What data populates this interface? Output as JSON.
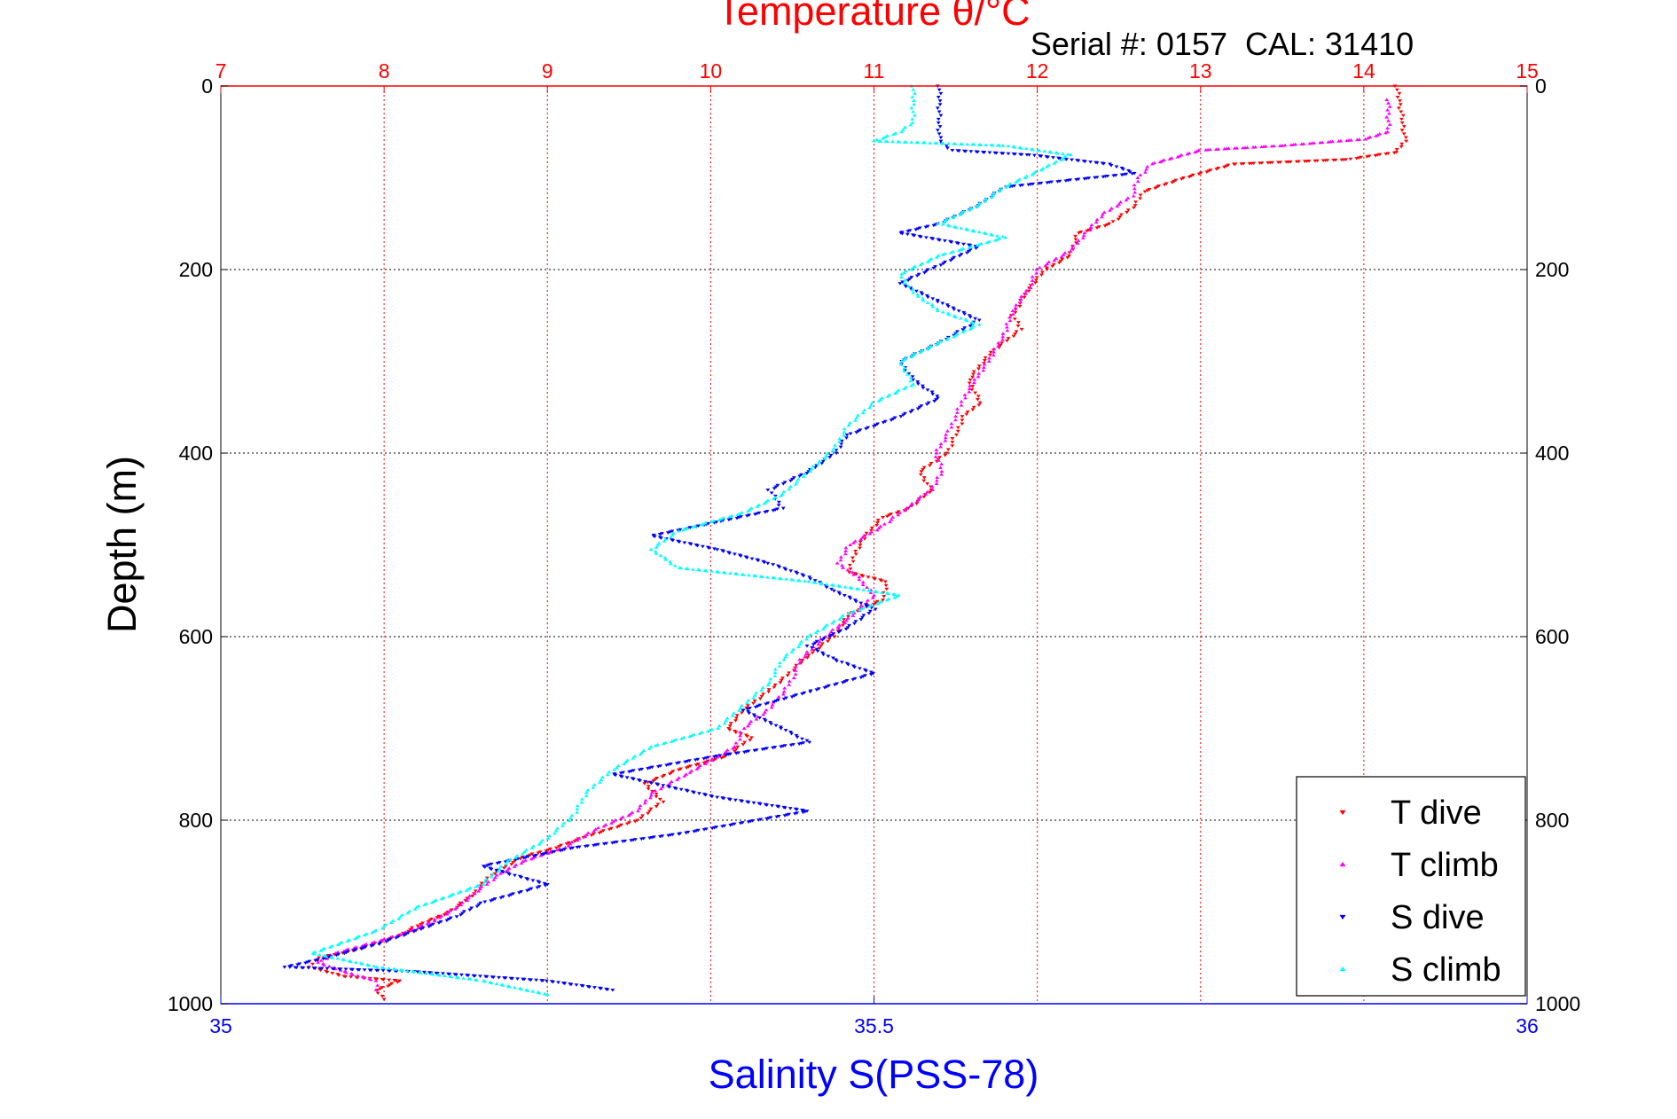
{
  "chart_data": {
    "type": "scatter",
    "title": "Temperature θ/°C",
    "subtitle": "Serial #: 0157  CAL: 31410",
    "top_axis": {
      "label": "Temperature θ/°C",
      "range": [
        7,
        15
      ],
      "ticks": [
        "7",
        "8",
        "9",
        "10",
        "11",
        "12",
        "13",
        "14",
        "15"
      ],
      "color": "#ff0000",
      "grid": true
    },
    "bottom_axis": {
      "label": "Salinity S(PSS-78)",
      "range": [
        35,
        36
      ],
      "ticks": [
        "35",
        "35.5",
        "36"
      ],
      "color": "#0000ff"
    },
    "y_axis": {
      "label": "Depth (m)",
      "range": [
        0,
        1000
      ],
      "reversed": true,
      "ticks": [
        "0",
        "200",
        "400",
        "600",
        "800",
        "1000"
      ],
      "grid": true
    },
    "legend": {
      "position": "bottom-right",
      "entries": [
        "T dive",
        "T climb",
        "S dive",
        "S climb"
      ]
    },
    "series": [
      {
        "name": "T dive",
        "axis": "temperature",
        "marker": "down-triangle",
        "color": "#ff0000",
        "points": [
          [
            14.2,
            0
          ],
          [
            14.22,
            20
          ],
          [
            14.24,
            40
          ],
          [
            14.25,
            60
          ],
          [
            14.2,
            72
          ],
          [
            13.9,
            80
          ],
          [
            13.2,
            85
          ],
          [
            12.9,
            100
          ],
          [
            12.65,
            115
          ],
          [
            12.6,
            130
          ],
          [
            12.45,
            150
          ],
          [
            12.25,
            160
          ],
          [
            12.2,
            185
          ],
          [
            12.05,
            200
          ],
          [
            11.95,
            220
          ],
          [
            11.85,
            250
          ],
          [
            11.9,
            265
          ],
          [
            11.72,
            290
          ],
          [
            11.58,
            320
          ],
          [
            11.65,
            345
          ],
          [
            11.55,
            360
          ],
          [
            11.5,
            380
          ],
          [
            11.45,
            400
          ],
          [
            11.28,
            420
          ],
          [
            11.35,
            440
          ],
          [
            11.22,
            460
          ],
          [
            11.05,
            470
          ],
          [
            10.95,
            490
          ],
          [
            10.88,
            510
          ],
          [
            10.85,
            530
          ],
          [
            11.08,
            540
          ],
          [
            11.05,
            560
          ],
          [
            10.85,
            575
          ],
          [
            10.75,
            600
          ],
          [
            10.6,
            620
          ],
          [
            10.45,
            645
          ],
          [
            10.35,
            660
          ],
          [
            10.2,
            680
          ],
          [
            10.1,
            700
          ],
          [
            10.25,
            710
          ],
          [
            10.1,
            730
          ],
          [
            9.8,
            745
          ],
          [
            9.6,
            760
          ],
          [
            9.7,
            780
          ],
          [
            9.55,
            800
          ],
          [
            9.2,
            820
          ],
          [
            9.05,
            830
          ],
          [
            8.85,
            840
          ],
          [
            8.65,
            860
          ],
          [
            8.55,
            880
          ],
          [
            8.4,
            900
          ],
          [
            8.2,
            915
          ],
          [
            8.1,
            925
          ],
          [
            7.85,
            940
          ],
          [
            7.6,
            950
          ],
          [
            7.55,
            960
          ],
          [
            7.75,
            970
          ],
          [
            8.1,
            975
          ],
          [
            7.95,
            985
          ],
          [
            8.0,
            995
          ]
        ]
      },
      {
        "name": "T climb",
        "axis": "temperature",
        "marker": "up-triangle",
        "color": "#ff00ff",
        "points": [
          [
            14.15,
            15
          ],
          [
            14.15,
            30
          ],
          [
            14.15,
            50
          ],
          [
            14.0,
            58
          ],
          [
            13.5,
            65
          ],
          [
            13.0,
            70
          ],
          [
            12.7,
            85
          ],
          [
            12.62,
            100
          ],
          [
            12.58,
            120
          ],
          [
            12.4,
            140
          ],
          [
            12.3,
            160
          ],
          [
            12.2,
            180
          ],
          [
            12.0,
            200
          ],
          [
            11.95,
            220
          ],
          [
            11.85,
            245
          ],
          [
            11.8,
            270
          ],
          [
            11.7,
            300
          ],
          [
            11.62,
            320
          ],
          [
            11.55,
            340
          ],
          [
            11.5,
            360
          ],
          [
            11.45,
            380
          ],
          [
            11.38,
            400
          ],
          [
            11.42,
            420
          ],
          [
            11.35,
            440
          ],
          [
            11.2,
            460
          ],
          [
            11.05,
            480
          ],
          [
            10.85,
            500
          ],
          [
            10.78,
            520
          ],
          [
            10.9,
            535
          ],
          [
            11.0,
            555
          ],
          [
            10.85,
            580
          ],
          [
            10.7,
            600
          ],
          [
            10.55,
            625
          ],
          [
            10.5,
            645
          ],
          [
            10.45,
            660
          ],
          [
            10.35,
            680
          ],
          [
            10.2,
            700
          ],
          [
            10.15,
            720
          ],
          [
            10.0,
            735
          ],
          [
            9.85,
            750
          ],
          [
            9.65,
            770
          ],
          [
            9.55,
            790
          ],
          [
            9.3,
            810
          ],
          [
            9.1,
            830
          ],
          [
            8.85,
            845
          ],
          [
            8.7,
            860
          ],
          [
            8.55,
            880
          ],
          [
            8.45,
            895
          ],
          [
            8.3,
            910
          ],
          [
            8.1,
            925
          ],
          [
            7.9,
            935
          ],
          [
            7.7,
            945
          ],
          [
            7.6,
            955
          ],
          [
            7.75,
            965
          ],
          [
            7.95,
            975
          ],
          [
            7.95,
            985
          ]
        ]
      },
      {
        "name": "S dive",
        "axis": "salinity",
        "marker": "down-triangle",
        "color": "#0000ff",
        "points": [
          [
            35.55,
            0
          ],
          [
            35.55,
            20
          ],
          [
            35.55,
            40
          ],
          [
            35.55,
            60
          ],
          [
            35.56,
            70
          ],
          [
            35.62,
            75
          ],
          [
            35.68,
            85
          ],
          [
            35.7,
            95
          ],
          [
            35.6,
            110
          ],
          [
            35.58,
            130
          ],
          [
            35.55,
            150
          ],
          [
            35.52,
            160
          ],
          [
            35.58,
            175
          ],
          [
            35.55,
            195
          ],
          [
            35.52,
            215
          ],
          [
            35.55,
            235
          ],
          [
            35.58,
            255
          ],
          [
            35.55,
            280
          ],
          [
            35.52,
            300
          ],
          [
            35.53,
            320
          ],
          [
            35.55,
            340
          ],
          [
            35.52,
            360
          ],
          [
            35.48,
            380
          ],
          [
            35.47,
            400
          ],
          [
            35.45,
            420
          ],
          [
            35.42,
            440
          ],
          [
            35.43,
            460
          ],
          [
            35.38,
            475
          ],
          [
            35.33,
            490
          ],
          [
            35.38,
            505
          ],
          [
            35.42,
            520
          ],
          [
            35.45,
            535
          ],
          [
            35.47,
            550
          ],
          [
            35.5,
            570
          ],
          [
            35.48,
            590
          ],
          [
            35.45,
            610
          ],
          [
            35.47,
            625
          ],
          [
            35.5,
            640
          ],
          [
            35.45,
            660
          ],
          [
            35.4,
            680
          ],
          [
            35.43,
            700
          ],
          [
            35.45,
            715
          ],
          [
            35.38,
            730
          ],
          [
            35.3,
            750
          ],
          [
            35.38,
            775
          ],
          [
            35.45,
            790
          ],
          [
            35.35,
            815
          ],
          [
            35.27,
            830
          ],
          [
            35.2,
            850
          ],
          [
            35.25,
            870
          ],
          [
            35.2,
            890
          ],
          [
            35.18,
            905
          ],
          [
            35.15,
            920
          ],
          [
            35.12,
            935
          ],
          [
            35.08,
            950
          ],
          [
            35.05,
            960
          ],
          [
            35.15,
            965
          ],
          [
            35.25,
            975
          ],
          [
            35.3,
            985
          ]
        ]
      },
      {
        "name": "S climb",
        "axis": "salinity",
        "marker": "up-triangle",
        "color": "#00ffff",
        "points": [
          [
            35.53,
            0
          ],
          [
            35.53,
            20
          ],
          [
            35.53,
            40
          ],
          [
            35.52,
            50
          ],
          [
            35.5,
            60
          ],
          [
            35.6,
            65
          ],
          [
            35.65,
            75
          ],
          [
            35.63,
            90
          ],
          [
            35.6,
            110
          ],
          [
            35.58,
            130
          ],
          [
            35.55,
            150
          ],
          [
            35.6,
            165
          ],
          [
            35.55,
            185
          ],
          [
            35.52,
            205
          ],
          [
            35.53,
            225
          ],
          [
            35.55,
            245
          ],
          [
            35.58,
            260
          ],
          [
            35.55,
            280
          ],
          [
            35.52,
            300
          ],
          [
            35.53,
            325
          ],
          [
            35.5,
            345
          ],
          [
            35.48,
            370
          ],
          [
            35.47,
            395
          ],
          [
            35.45,
            420
          ],
          [
            35.43,
            445
          ],
          [
            35.4,
            465
          ],
          [
            35.35,
            485
          ],
          [
            35.33,
            505
          ],
          [
            35.35,
            525
          ],
          [
            35.45,
            540
          ],
          [
            35.52,
            555
          ],
          [
            35.48,
            575
          ],
          [
            35.45,
            600
          ],
          [
            35.43,
            625
          ],
          [
            35.42,
            650
          ],
          [
            35.4,
            675
          ],
          [
            35.38,
            700
          ],
          [
            35.33,
            720
          ],
          [
            35.3,
            745
          ],
          [
            35.28,
            770
          ],
          [
            35.27,
            795
          ],
          [
            35.25,
            820
          ],
          [
            35.22,
            845
          ],
          [
            35.2,
            870
          ],
          [
            35.15,
            895
          ],
          [
            35.12,
            920
          ],
          [
            35.07,
            945
          ],
          [
            35.12,
            960
          ],
          [
            35.2,
            975
          ],
          [
            35.25,
            990
          ]
        ]
      }
    ]
  }
}
